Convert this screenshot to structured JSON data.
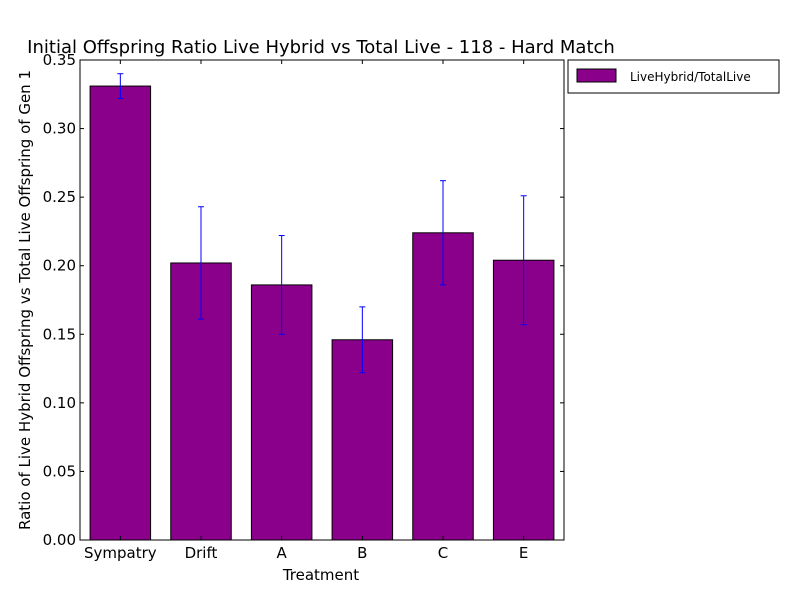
{
  "chart_data": {
    "type": "bar",
    "title": "Initial Offspring Ratio Live Hybrid vs Total Live - 118 - Hard Match",
    "xlabel": "Treatment",
    "ylabel": "Ratio of Live Hybrid Offspring vs Total Live Offspring of Gen 1",
    "categories": [
      "Sympatry",
      "Drift",
      "A",
      "B",
      "C",
      "E"
    ],
    "series": [
      {
        "name": "LiveHybrid/TotalLive",
        "values": [
          0.331,
          0.202,
          0.186,
          0.146,
          0.224,
          0.204
        ],
        "error": [
          0.009,
          0.041,
          0.036,
          0.024,
          0.038,
          0.047
        ],
        "color": "#8b008b"
      }
    ],
    "error_color": "#0000ff",
    "ylim": [
      0,
      0.35
    ],
    "yticks": [
      "0.00",
      "0.05",
      "0.10",
      "0.15",
      "0.20",
      "0.25",
      "0.30",
      "0.35"
    ],
    "legend_position": "outside-top-right",
    "grid": false
  }
}
